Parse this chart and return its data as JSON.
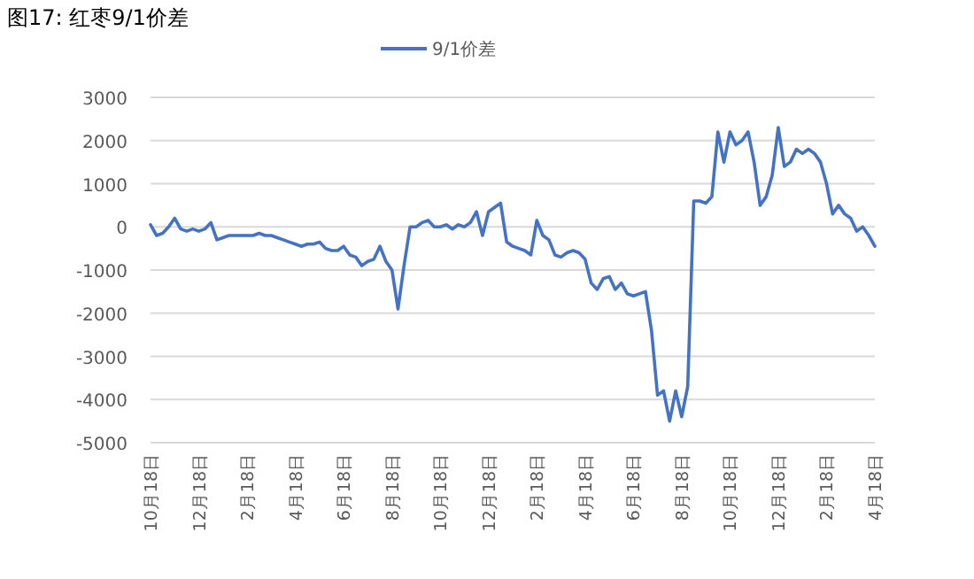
{
  "chart_data": {
    "type": "line",
    "title": "图17:  红枣9/1价差",
    "categories": [
      "10月18日",
      null,
      null,
      null,
      null,
      null,
      null,
      null,
      "12月18日",
      null,
      null,
      null,
      null,
      null,
      null,
      null,
      "2月18日",
      null,
      null,
      null,
      null,
      null,
      null,
      null,
      "4月18日",
      null,
      null,
      null,
      null,
      null,
      null,
      null,
      "6月18日",
      null,
      null,
      null,
      null,
      null,
      null,
      null,
      "8月18日",
      null,
      null,
      null,
      null,
      null,
      null,
      null,
      "10月18日",
      null,
      null,
      null,
      null,
      null,
      null,
      null,
      "12月18日",
      null,
      null,
      null,
      null,
      null,
      null,
      null,
      "2月18日",
      null,
      null,
      null,
      null,
      null,
      null,
      null,
      "4月18日",
      null,
      null,
      null,
      null,
      null,
      null,
      null,
      "6月18日",
      null,
      null,
      null,
      null,
      null,
      null,
      null,
      "8月18日",
      null,
      null,
      null,
      null,
      null,
      null,
      null,
      "10月18日",
      null,
      null,
      null,
      null,
      null,
      null,
      null,
      "12月18日",
      null,
      null,
      null,
      null,
      null,
      null,
      null,
      "2月18日",
      null,
      null,
      null,
      null,
      null,
      null,
      null,
      "4月18日"
    ],
    "series": [
      {
        "name": "9/1价差",
        "color": "#4472c4",
        "values": [
          50,
          -200,
          -150,
          0,
          200,
          -50,
          -100,
          -50,
          -100,
          -50,
          100,
          -300,
          -250,
          -200,
          -200,
          -200,
          -200,
          -200,
          -150,
          -200,
          -200,
          -250,
          -300,
          -350,
          -400,
          -450,
          -400,
          -400,
          -350,
          -500,
          -550,
          -550,
          -450,
          -650,
          -700,
          -900,
          -800,
          -750,
          -450,
          -800,
          -1000,
          -1900,
          -900,
          0,
          0,
          100,
          150,
          0,
          0,
          50,
          -50,
          50,
          0,
          100,
          350,
          -200,
          350,
          450,
          550,
          -350,
          -450,
          -500,
          -550,
          -650,
          150,
          -200,
          -300,
          -650,
          -700,
          -600,
          -550,
          -600,
          -750,
          -1300,
          -1450,
          -1200,
          -1150,
          -1450,
          -1300,
          -1550,
          -1600,
          -1550,
          -1500,
          -2400,
          -3900,
          -3800,
          -4500,
          -3800,
          -4400,
          -3700,
          600,
          600,
          550,
          700,
          2200,
          1500,
          2200,
          1900,
          2000,
          2200,
          1500,
          500,
          700,
          1200,
          2300,
          1400,
          1500,
          1800,
          1700,
          1800,
          1700,
          1500,
          1000,
          300,
          500,
          300,
          200,
          -100,
          0,
          -200,
          -450
        ]
      }
    ],
    "ylim": [
      -5000,
      3000
    ],
    "yticks": [
      -5000,
      -4000,
      -3000,
      -2000,
      -1000,
      0,
      1000,
      2000,
      3000
    ],
    "grid": "y",
    "legend": "top"
  }
}
